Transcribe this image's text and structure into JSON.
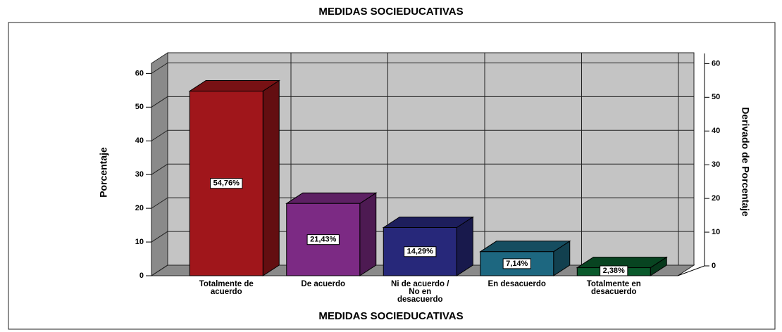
{
  "chart_data": {
    "type": "bar3d",
    "title": "MEDIDAS SOCIEDUCATIVAS",
    "x_label": "MEDIDAS SOCIEDUCATIVAS",
    "y_label": "Porcentaje",
    "y2_label": "Derivado de Porcentaje",
    "categories": [
      "Totalmente de acuerdo",
      "De acuerdo",
      "Ni de acuerdo / No en desacuerdo",
      "En desacuerdo",
      "Totalmente en desacuerdo"
    ],
    "values": [
      54.76,
      21.43,
      14.29,
      7.14,
      2.38
    ],
    "value_labels": [
      "54,76%",
      "21,43%",
      "14,29%",
      "7,14%",
      "2,38%"
    ],
    "colors": [
      "#a0161b",
      "#7c2a84",
      "#27287a",
      "#1d6780",
      "#0a5a2c"
    ],
    "ylim": [
      0,
      63
    ],
    "yticks": [
      0,
      10,
      20,
      30,
      40,
      50,
      60
    ],
    "y2lim": [
      0,
      63
    ],
    "y2ticks": [
      0,
      10,
      20,
      30,
      40,
      50,
      60
    ],
    "grid": true
  }
}
